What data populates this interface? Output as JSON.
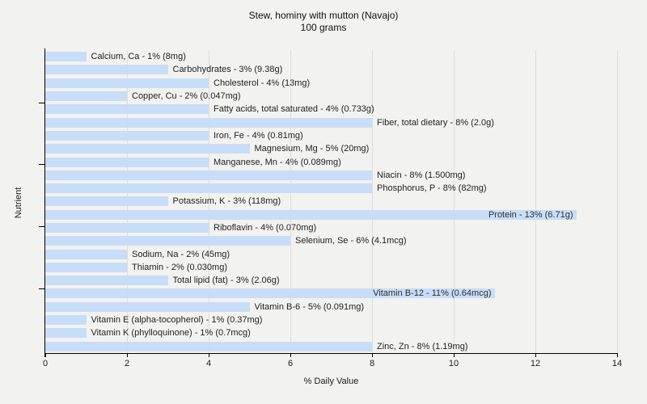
{
  "title": {
    "line1": "Stew, hominy with mutton (Navajo)",
    "line2": "100 grams"
  },
  "axes": {
    "xlabel": "% Daily Value",
    "ylabel": "Nutrient",
    "x_ticks": [
      0,
      2,
      4,
      6,
      8,
      10,
      12,
      14
    ],
    "x_max": 14,
    "y_tick_positions_pct": [
      17.3,
      37.6,
      58.1,
      78.7
    ]
  },
  "colors": {
    "background": "#f2f2f0",
    "bar": "#c5dcf8",
    "grid": "#dddddb",
    "axis": "#000000",
    "text": "#1c1c1c"
  },
  "chart_data": {
    "type": "bar",
    "orientation": "horizontal",
    "title": "Stew, hominy with mutton (Navajo)",
    "subtitle": "100 grams",
    "xlabel": "% Daily Value",
    "ylabel": "Nutrient",
    "xlim": [
      0,
      14
    ],
    "grid": true,
    "legend": false,
    "categories": [
      "Calcium, Ca",
      "Carbohydrates",
      "Cholesterol",
      "Copper, Cu",
      "Fatty acids, total saturated",
      "Fiber, total dietary",
      "Iron, Fe",
      "Magnesium, Mg",
      "Manganese, Mn",
      "Niacin",
      "Phosphorus, P",
      "Potassium, K",
      "Protein",
      "Riboflavin",
      "Selenium, Se",
      "Sodium, Na",
      "Thiamin",
      "Total lipid (fat)",
      "Vitamin B-12",
      "Vitamin B-6",
      "Vitamin E (alpha-tocopherol)",
      "Vitamin K (phylloquinone)",
      "Zinc, Zn"
    ],
    "values": [
      1,
      3,
      4,
      2,
      4,
      8,
      4,
      5,
      4,
      8,
      8,
      3,
      13,
      4,
      6,
      2,
      2,
      3,
      11,
      5,
      1,
      1,
      8
    ],
    "bars": [
      {
        "label": "Calcium, Ca - 1% (8mg)",
        "percent": 1,
        "amount": "8mg",
        "label_inside": false
      },
      {
        "label": "Carbohydrates - 3% (9.38g)",
        "percent": 3,
        "amount": "9.38g",
        "label_inside": false
      },
      {
        "label": "Cholesterol - 4% (13mg)",
        "percent": 4,
        "amount": "13mg",
        "label_inside": false
      },
      {
        "label": "Copper, Cu - 2% (0.047mg)",
        "percent": 2,
        "amount": "0.047mg",
        "label_inside": false
      },
      {
        "label": "Fatty acids, total saturated - 4% (0.733g)",
        "percent": 4,
        "amount": "0.733g",
        "label_inside": false
      },
      {
        "label": "Fiber, total dietary - 8% (2.0g)",
        "percent": 8,
        "amount": "2.0g",
        "label_inside": false
      },
      {
        "label": "Iron, Fe - 4% (0.81mg)",
        "percent": 4,
        "amount": "0.81mg",
        "label_inside": false
      },
      {
        "label": "Magnesium, Mg - 5% (20mg)",
        "percent": 5,
        "amount": "20mg",
        "label_inside": false
      },
      {
        "label": "Manganese, Mn - 4% (0.089mg)",
        "percent": 4,
        "amount": "0.089mg",
        "label_inside": false
      },
      {
        "label": "Niacin - 8% (1.500mg)",
        "percent": 8,
        "amount": "1.500mg",
        "label_inside": false
      },
      {
        "label": "Phosphorus, P - 8% (82mg)",
        "percent": 8,
        "amount": "82mg",
        "label_inside": false
      },
      {
        "label": "Potassium, K - 3% (118mg)",
        "percent": 3,
        "amount": "118mg",
        "label_inside": false
      },
      {
        "label": "Protein - 13% (6.71g)",
        "percent": 13,
        "amount": "6.71g",
        "label_inside": true
      },
      {
        "label": "Riboflavin - 4% (0.070mg)",
        "percent": 4,
        "amount": "0.070mg",
        "label_inside": false
      },
      {
        "label": "Selenium, Se - 6% (4.1mcg)",
        "percent": 6,
        "amount": "4.1mcg",
        "label_inside": false
      },
      {
        "label": "Sodium, Na - 2% (45mg)",
        "percent": 2,
        "amount": "45mg",
        "label_inside": false
      },
      {
        "label": "Thiamin - 2% (0.030mg)",
        "percent": 2,
        "amount": "0.030mg",
        "label_inside": false
      },
      {
        "label": "Total lipid (fat) - 3% (2.06g)",
        "percent": 3,
        "amount": "2.06g",
        "label_inside": false
      },
      {
        "label": "Vitamin B-12 - 11% (0.64mcg)",
        "percent": 11,
        "amount": "0.64mcg",
        "label_inside": true
      },
      {
        "label": "Vitamin B-6 - 5% (0.091mg)",
        "percent": 5,
        "amount": "0.091mg",
        "label_inside": false
      },
      {
        "label": "Vitamin E (alpha-tocopherol) - 1% (0.37mg)",
        "percent": 1,
        "amount": "0.37mg",
        "label_inside": false
      },
      {
        "label": "Vitamin K (phylloquinone) - 1% (0.7mcg)",
        "percent": 1,
        "amount": "0.7mcg",
        "label_inside": false
      },
      {
        "label": "Zinc, Zn - 8% (1.19mg)",
        "percent": 8,
        "amount": "1.19mg",
        "label_inside": false
      }
    ]
  }
}
